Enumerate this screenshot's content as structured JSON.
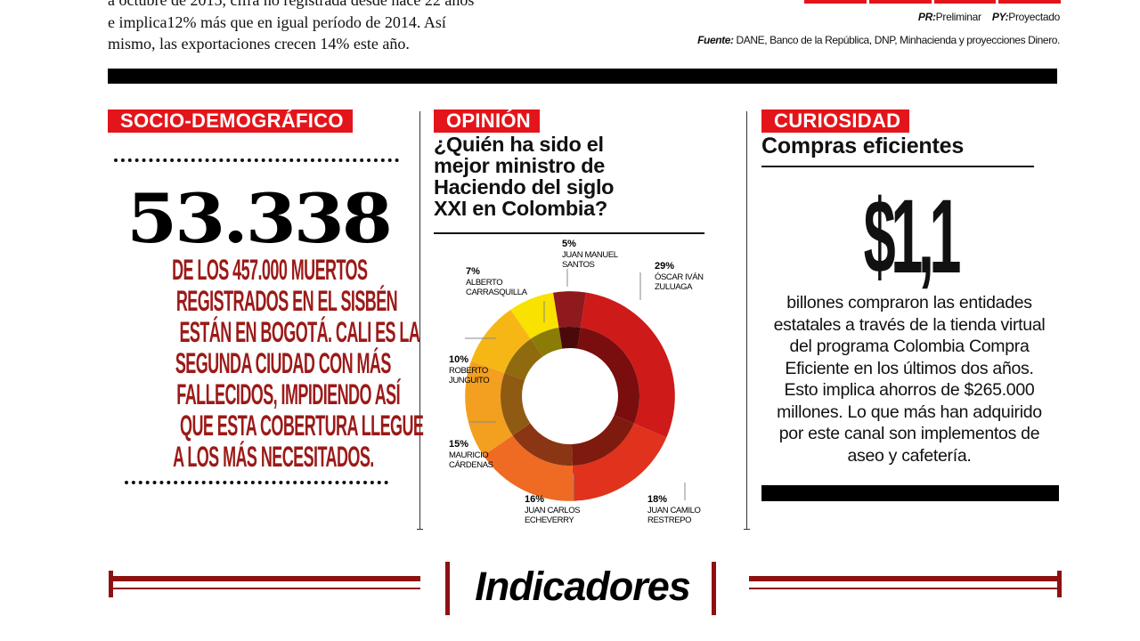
{
  "top_article": {
    "line1": "a octubre de 2015, cifra no registrada desde hace 22 años",
    "line2": "e implica12% más que en igual período de 2014. Así",
    "line3": "mismo, las exportaciones crecen 14% este año."
  },
  "notes": {
    "pr_abbr": "PR:",
    "pr_text": "Preliminar",
    "py_abbr": "PY:",
    "py_text": "Proyectado",
    "source_label": "Fuente:",
    "source_text": " DANE, Banco de la República, DNP, Minhacienda y proyecciones Dinero."
  },
  "socio": {
    "label": "SOCIO-DEMOGRÁFICO",
    "number": "53.338",
    "text_lines": [
      "DE LOS 457.000 MUERTOS",
      "REGISTRADOS EN EL SISBÉN",
      "ESTÁN EN BOGOTÁ. CALI ES LA",
      "SEGUNDA CIUDAD CON MÁS",
      "FALLECIDOS, IMPIDIENDO ASÍ",
      "QUE ESTA COBERTURA LLEGUE",
      "A LOS MÁS NECESITADOS."
    ]
  },
  "opinion": {
    "label": "OPINIÓN",
    "title_lines": [
      "¿Quién ha sido el",
      "mejor ministro de",
      "Haciendo del siglo",
      "XXI en Colombia?"
    ]
  },
  "chart_data": {
    "type": "pie",
    "variant": "donut",
    "title": "¿Quién ha sido el mejor ministro de Haciendo del siglo XXI en Colombia?",
    "categories": [
      "ÓSCAR IVÁN ZULUAGA",
      "JUAN CAMILO RESTREPO",
      "JUAN CARLOS ECHEVERRY",
      "MAURICIO CÁRDENAS",
      "ROBERTO JUNGUITO",
      "ALBERTO CARRASQUILLA",
      "JUAN MANUEL SANTOS"
    ],
    "values": [
      29,
      18,
      16,
      15,
      10,
      7,
      5
    ],
    "labels": [
      {
        "pct": "29%",
        "lines": [
          "ÓSCAR IVÁN",
          "ZULUAGA"
        ]
      },
      {
        "pct": "18%",
        "lines": [
          "JUAN CAMILO",
          "RESTREPO"
        ]
      },
      {
        "pct": "16%",
        "lines": [
          "JUAN CARLOS",
          "ECHEVERRY"
        ]
      },
      {
        "pct": "15%",
        "lines": [
          "MAURICIO",
          "CÁRDENAS"
        ]
      },
      {
        "pct": "10%",
        "lines": [
          "ROBERTO",
          "JUNGUITO"
        ]
      },
      {
        "pct": "7%",
        "lines": [
          "ALBERTO",
          "CARRASQUILLA"
        ]
      },
      {
        "pct": "5%",
        "lines": [
          "JUAN MANUEL",
          "SANTOS"
        ]
      }
    ],
    "colors": [
      "#cf1a1a",
      "#e0321c",
      "#ef6a22",
      "#f39f1f",
      "#f6b716",
      "#f9e100",
      "#8e1a1d"
    ],
    "inner_colors": [
      "#7a0d0d",
      "#7f1a0f",
      "#8a3514",
      "#8f5a12",
      "#8f6a0f",
      "#8a7c05",
      "#4a0a0c"
    ]
  },
  "curiosidad": {
    "label": "CURIOSIDAD",
    "title": "Compras eficientes",
    "amount": "$1,1",
    "body_lines": [
      "billones compraron las entidades",
      "estatales a través de la tienda virtual",
      "del programa Colombia Compra",
      "Eficiente en los últimos dos años.",
      "Esto implica ahorros de $265.000",
      "millones. Lo que más han adquirido",
      "por este canal son implementos de",
      "aseo y cafetería."
    ]
  },
  "footer": {
    "title": "Indicadores"
  }
}
